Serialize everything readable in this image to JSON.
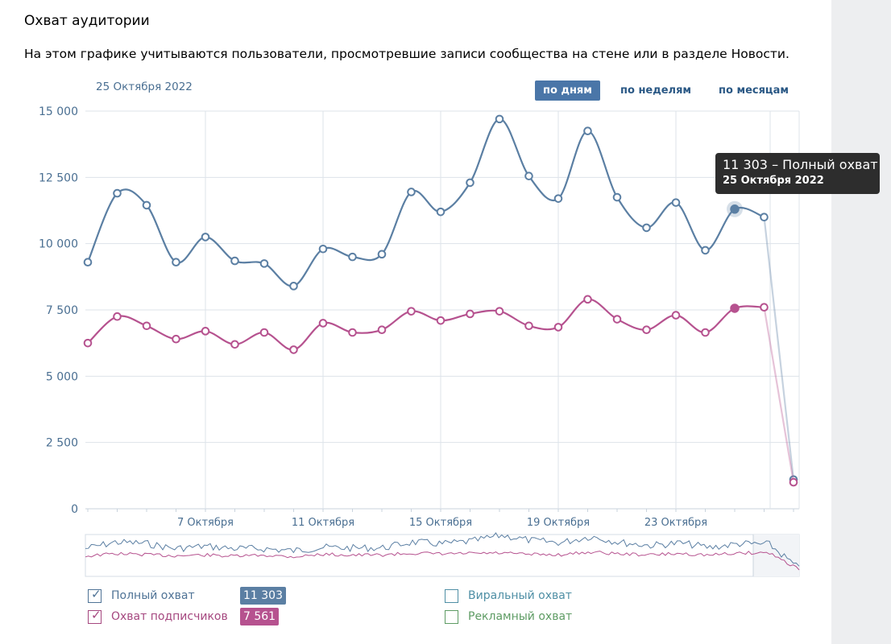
{
  "header": {
    "title": "Охват аудитории",
    "description": "На этом графике учитываются пользователи, просмотревшие записи сообщества на стене или в разделе Новости."
  },
  "current_date": "25 Октября 2022",
  "periods": [
    {
      "label": "по дням",
      "active": true
    },
    {
      "label": "по неделям",
      "active": false
    },
    {
      "label": "по месяцам",
      "active": false
    }
  ],
  "tooltip": {
    "line1": "11 303 – Полный охват",
    "line2": "25 Октября 2022"
  },
  "legend": [
    {
      "label": "Полный охват",
      "checked": true,
      "value": "11 303",
      "color": "#5b7fa3"
    },
    {
      "label": "Охват подписчиков",
      "checked": true,
      "value": "7 561",
      "color": "#b6528f"
    },
    {
      "label": "Виральный охват",
      "checked": false,
      "color": "#4f8fa5"
    },
    {
      "label": "Рекламный охват",
      "checked": false,
      "color": "#5e9c64"
    }
  ],
  "colors": {
    "axis_text": "#4a6f92",
    "grid": "#dde3ea",
    "full": "#5b7fa3",
    "subs": "#b6528f"
  },
  "chart_data": {
    "type": "line",
    "x": [
      "3 Октября",
      "4 Октября",
      "5 Октября",
      "6 Октября",
      "7 Октября",
      "8 Октября",
      "9 Октября",
      "10 Октября",
      "11 Октября",
      "12 Октября",
      "13 Октября",
      "14 Октября",
      "15 Октября",
      "16 Октября",
      "17 Октября",
      "18 Октября",
      "19 Октября",
      "20 Октября",
      "21 Октября",
      "22 Октября",
      "23 Октября",
      "24 Октября",
      "25 Октября",
      "26 Октября",
      "27 Октября"
    ],
    "x_tick_labels": [
      "7 Октября",
      "11 Октября",
      "15 Октября",
      "19 Октября",
      "23 Октября"
    ],
    "y_ticks": [
      "0",
      "2 500",
      "5 000",
      "7 500",
      "10 000",
      "12 500",
      "15 000"
    ],
    "ylim": [
      0,
      15000
    ],
    "grid": true,
    "highlight": {
      "date": "25 Октября 2022",
      "full": 11303,
      "subs": 7561
    },
    "series": [
      {
        "name": "Полный охват",
        "values": [
          9300,
          11900,
          11450,
          9300,
          10250,
          9350,
          9250,
          8400,
          9800,
          9500,
          9600,
          11950,
          11200,
          12300,
          14700,
          12550,
          11700,
          14250,
          11750,
          10600,
          11550,
          9750,
          11303,
          11000,
          1100
        ]
      },
      {
        "name": "Охват подписчиков",
        "values": [
          6250,
          7250,
          6900,
          6400,
          6700,
          6200,
          6650,
          6000,
          7000,
          6650,
          6750,
          7450,
          7100,
          7350,
          7450,
          6900,
          6850,
          7900,
          7150,
          6750,
          7300,
          6650,
          7561,
          7600,
          1000
        ]
      }
    ]
  }
}
